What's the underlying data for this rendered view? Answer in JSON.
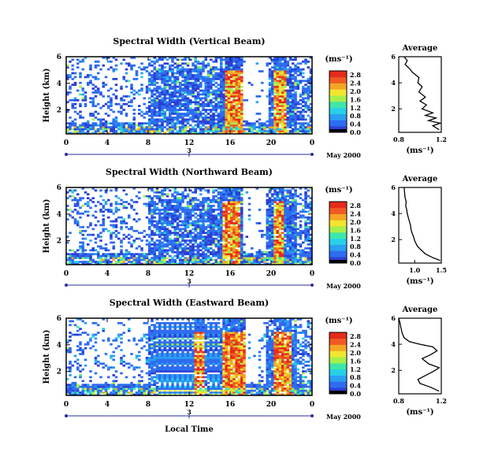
{
  "figure": {
    "x_axis_label": "Local Time",
    "date_label": "May 2000",
    "day_label": "3",
    "colorbar_unit": "(ms⁻¹)",
    "avg_unit": "(ms⁻¹)",
    "avg_title": "Average"
  },
  "chart_data": [
    {
      "type": "heatmap",
      "title": "Spectral Width (Vertical Beam)",
      "ylabel": "Height (km)",
      "xlabel": "Local Time",
      "x_ticks": [
        "0",
        "4",
        "8",
        "12",
        "16",
        "20",
        "0"
      ],
      "xlim": [
        0,
        24
      ],
      "y_ticks": [
        "2",
        "4",
        "6"
      ],
      "ylim": [
        0.2,
        6
      ],
      "colorbar_ticks": [
        "0.0",
        "0.4",
        "0.8",
        "1.2",
        "1.6",
        "2.0",
        "2.4",
        "2.8"
      ],
      "colorbar_range": [
        0,
        3.0
      ],
      "seed": 11,
      "strong_bands": [
        [
          15.5,
          17.2
        ],
        [
          20.3,
          21.6
        ]
      ],
      "gaps": [
        [
          17.3,
          19.8
        ]
      ],
      "profile": {
        "title": "Average",
        "xlabel": "(ms⁻¹)",
        "x_ticks": [
          "0.8",
          "1.2"
        ],
        "xlim": [
          0.8,
          1.2
        ],
        "y_ticks": [
          "2",
          "4",
          "6"
        ],
        "ylim": [
          0.2,
          6
        ],
        "points": [
          [
            1.18,
            0.4
          ],
          [
            1.12,
            0.7
          ],
          [
            1.19,
            0.9
          ],
          [
            1.08,
            1.1
          ],
          [
            1.15,
            1.3
          ],
          [
            1.05,
            1.5
          ],
          [
            1.12,
            1.7
          ],
          [
            1.02,
            2.0
          ],
          [
            1.06,
            2.3
          ],
          [
            1.0,
            2.6
          ],
          [
            1.05,
            2.9
          ],
          [
            0.99,
            3.3
          ],
          [
            1.02,
            3.7
          ],
          [
            0.98,
            4.0
          ],
          [
            0.99,
            4.4
          ],
          [
            0.93,
            4.8
          ],
          [
            0.9,
            5.1
          ],
          [
            0.86,
            5.4
          ],
          [
            0.88,
            5.7
          ],
          [
            0.85,
            6.0
          ]
        ]
      }
    },
    {
      "type": "heatmap",
      "title": "Spectral Width (Northward Beam)",
      "ylabel": "Height (km)",
      "xlabel": "Local Time",
      "x_ticks": [
        "0",
        "4",
        "8",
        "12",
        "16",
        "20",
        "0"
      ],
      "xlim": [
        0,
        24
      ],
      "y_ticks": [
        "2",
        "4",
        "6"
      ],
      "ylim": [
        0.2,
        6
      ],
      "colorbar_ticks": [
        "0.0",
        "0.4",
        "0.8",
        "1.2",
        "1.6",
        "2.0",
        "2.4",
        "2.8"
      ],
      "colorbar_range": [
        0,
        3.0
      ],
      "seed": 23,
      "strong_bands": [
        [
          15.3,
          17.0
        ],
        [
          20.2,
          21.3
        ]
      ],
      "gaps": [
        [
          17.2,
          19.6
        ]
      ],
      "profile": {
        "title": "Average",
        "xlabel": "(ms⁻¹)",
        "x_ticks": [
          "1.0",
          "1.5"
        ],
        "xlim": [
          0.7,
          1.5
        ],
        "y_ticks": [
          "2",
          "4",
          "6"
        ],
        "ylim": [
          0.2,
          6
        ],
        "points": [
          [
            1.48,
            0.4
          ],
          [
            1.35,
            0.6
          ],
          [
            1.2,
            0.9
          ],
          [
            1.12,
            1.2
          ],
          [
            1.05,
            1.5
          ],
          [
            1.0,
            1.9
          ],
          [
            0.98,
            2.2
          ],
          [
            0.95,
            2.5
          ],
          [
            0.93,
            2.8
          ],
          [
            0.92,
            3.1
          ],
          [
            0.9,
            3.4
          ],
          [
            0.88,
            3.7
          ],
          [
            0.86,
            4.0
          ],
          [
            0.85,
            4.3
          ],
          [
            0.83,
            4.6
          ],
          [
            0.84,
            4.9
          ],
          [
            0.82,
            5.2
          ],
          [
            0.81,
            5.6
          ],
          [
            0.8,
            6.0
          ]
        ]
      }
    },
    {
      "type": "heatmap",
      "title": "Spectral Width (Eastward Beam)",
      "ylabel": "Height (km)",
      "xlabel": "Local Time",
      "x_ticks": [
        "0",
        "4",
        "8",
        "12",
        "16",
        "20",
        "0"
      ],
      "xlim": [
        0,
        24
      ],
      "y_ticks": [
        "2",
        "4",
        "6"
      ],
      "ylim": [
        0.2,
        6
      ],
      "colorbar_ticks": [
        "0.0",
        "0.4",
        "0.8",
        "1.2",
        "1.6",
        "2.0",
        "2.4",
        "2.8"
      ],
      "colorbar_range": [
        0,
        3.0
      ],
      "seed": 37,
      "strong_bands": [
        [
          12.4,
          13.6
        ],
        [
          15.3,
          17.4
        ],
        [
          20.2,
          22.0
        ]
      ],
      "gaps": [
        [
          17.5,
          18.8
        ]
      ],
      "profile": {
        "title": "Average",
        "xlabel": "(ms⁻¹)",
        "x_ticks": [
          "0.8",
          "1.2"
        ],
        "xlim": [
          0.8,
          1.2
        ],
        "y_ticks": [
          "2",
          "4",
          "6"
        ],
        "ylim": [
          0.2,
          6
        ],
        "points": [
          [
            1.18,
            0.4
          ],
          [
            1.1,
            0.7
          ],
          [
            1.0,
            1.0
          ],
          [
            0.98,
            1.3
          ],
          [
            1.05,
            1.6
          ],
          [
            1.12,
            1.9
          ],
          [
            1.18,
            2.2
          ],
          [
            1.08,
            2.5
          ],
          [
            1.02,
            2.9
          ],
          [
            1.1,
            3.2
          ],
          [
            1.16,
            3.5
          ],
          [
            1.12,
            3.8
          ],
          [
            1.0,
            4.0
          ],
          [
            0.9,
            4.2
          ],
          [
            0.85,
            4.5
          ],
          [
            0.83,
            4.9
          ],
          [
            0.82,
            5.3
          ],
          [
            0.81,
            5.7
          ],
          [
            0.8,
            6.0
          ]
        ]
      }
    }
  ]
}
